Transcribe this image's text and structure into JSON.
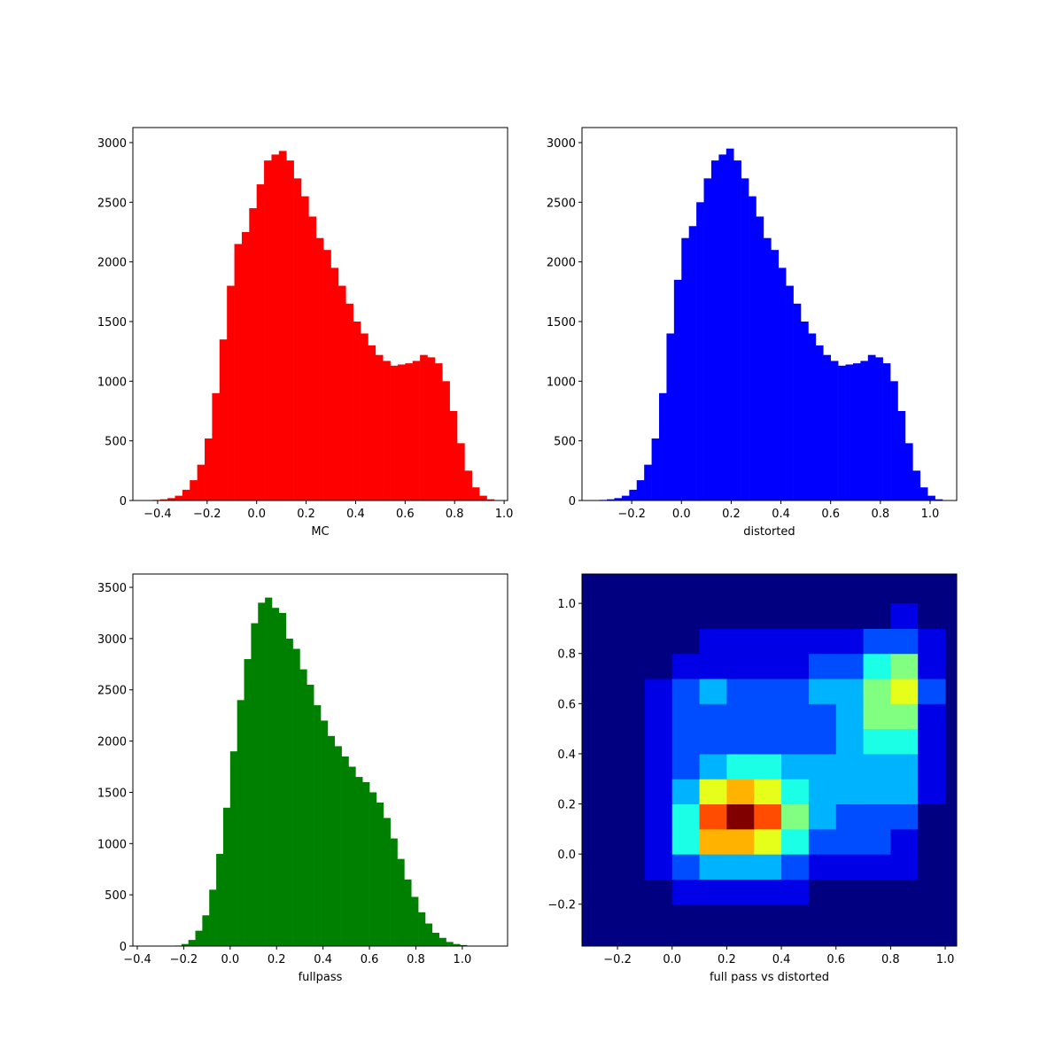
{
  "chart_data": [
    {
      "type": "histogram",
      "xlabel": "MC",
      "color": "#ff0000",
      "bins": [
        -0.42,
        -0.39,
        -0.36,
        -0.33,
        -0.3,
        -0.27,
        -0.24,
        -0.21,
        -0.18,
        -0.15,
        -0.12,
        -0.09,
        -0.06,
        -0.03,
        0.0,
        0.03,
        0.06,
        0.09,
        0.12,
        0.15,
        0.18,
        0.21,
        0.24,
        0.27,
        0.3,
        0.33,
        0.36,
        0.39,
        0.42,
        0.45,
        0.48,
        0.51,
        0.54,
        0.57,
        0.6,
        0.63,
        0.66,
        0.69,
        0.72,
        0.75,
        0.78,
        0.81,
        0.84,
        0.87,
        0.9,
        0.93,
        0.96
      ],
      "counts": [
        5,
        10,
        20,
        40,
        90,
        170,
        300,
        520,
        900,
        1350,
        1800,
        2150,
        2250,
        2450,
        2650,
        2850,
        2900,
        2930,
        2850,
        2700,
        2550,
        2380,
        2200,
        2100,
        1950,
        1800,
        1650,
        1500,
        1400,
        1300,
        1220,
        1170,
        1130,
        1140,
        1150,
        1170,
        1220,
        1200,
        1150,
        1000,
        750,
        480,
        250,
        110,
        40,
        10
      ],
      "xlim": [
        -0.5,
        1.014
      ],
      "xticks": [
        {
          "value": -0.4,
          "label": "−0.4"
        },
        {
          "value": -0.2,
          "label": "−0.2"
        },
        {
          "value": 0,
          "label": "0.0"
        },
        0.2,
        0.4,
        0.6,
        0.8,
        {
          "value": 1,
          "label": "1.0"
        }
      ],
      "ylim": [
        0,
        3126
      ],
      "yticks": [
        0,
        500,
        1000,
        1500,
        2000,
        2500,
        3000
      ]
    },
    {
      "type": "histogram",
      "xlabel": "distorted",
      "color": "#0000ff",
      "bins": [
        -0.33,
        -0.3,
        -0.27,
        -0.24,
        -0.21,
        -0.18,
        -0.15,
        -0.12,
        -0.09,
        -0.06,
        -0.03,
        0.0,
        0.03,
        0.06,
        0.09,
        0.12,
        0.15,
        0.18,
        0.21,
        0.24,
        0.27,
        0.3,
        0.33,
        0.36,
        0.39,
        0.42,
        0.45,
        0.48,
        0.51,
        0.54,
        0.57,
        0.6,
        0.63,
        0.66,
        0.69,
        0.72,
        0.75,
        0.78,
        0.81,
        0.84,
        0.87,
        0.9,
        0.93,
        0.96,
        0.99,
        1.02,
        1.05
      ],
      "counts": [
        5,
        10,
        20,
        40,
        90,
        170,
        300,
        520,
        900,
        1400,
        1850,
        2200,
        2300,
        2500,
        2700,
        2850,
        2900,
        2950,
        2850,
        2700,
        2550,
        2380,
        2200,
        2100,
        1950,
        1800,
        1650,
        1500,
        1400,
        1300,
        1220,
        1170,
        1130,
        1140,
        1150,
        1170,
        1220,
        1200,
        1150,
        1000,
        750,
        480,
        250,
        110,
        40,
        10
      ],
      "xlim": [
        -0.4,
        1.107
      ],
      "xticks": [
        {
          "value": -0.2,
          "label": "−0.2"
        },
        {
          "value": 0,
          "label": "0.0"
        },
        0.2,
        0.4,
        0.6,
        0.8,
        {
          "value": 1,
          "label": "1.0"
        }
      ],
      "ylim": [
        0,
        3126
      ],
      "yticks": [
        0,
        500,
        1000,
        1500,
        2000,
        2500,
        3000
      ]
    },
    {
      "type": "histogram",
      "xlabel": "fullpass",
      "color": "#008000",
      "bins": [
        -0.24,
        -0.21,
        -0.18,
        -0.15,
        -0.12,
        -0.09,
        -0.06,
        -0.03,
        0.0,
        0.03,
        0.06,
        0.09,
        0.12,
        0.15,
        0.18,
        0.21,
        0.24,
        0.27,
        0.3,
        0.33,
        0.36,
        0.39,
        0.42,
        0.45,
        0.48,
        0.51,
        0.54,
        0.57,
        0.6,
        0.63,
        0.66,
        0.69,
        0.72,
        0.75,
        0.78,
        0.81,
        0.84,
        0.87,
        0.9,
        0.93,
        0.96,
        0.99,
        1.02,
        1.05,
        1.08,
        1.11,
        1.14
      ],
      "counts": [
        5,
        20,
        60,
        150,
        300,
        550,
        900,
        1350,
        1900,
        2400,
        2800,
        3150,
        3350,
        3400,
        3300,
        3250,
        3000,
        2900,
        2700,
        2550,
        2350,
        2200,
        2050,
        1950,
        1850,
        1750,
        1650,
        1600,
        1500,
        1400,
        1250,
        1050,
        850,
        650,
        480,
        330,
        220,
        130,
        80,
        40,
        20,
        10,
        3,
        1,
        0,
        0
      ],
      "xlim": [
        -0.419,
        1.195
      ],
      "xticks": [
        {
          "value": -0.4,
          "label": "−0.4"
        },
        {
          "value": -0.2,
          "label": "−0.2"
        },
        {
          "value": 0,
          "label": "0.0"
        },
        0.2,
        0.4,
        0.6,
        0.8,
        {
          "value": 1,
          "label": "1.0"
        }
      ],
      "ylim": [
        0,
        3630
      ],
      "yticks": [
        0,
        500,
        1000,
        1500,
        2000,
        2500,
        3000,
        3500
      ]
    },
    {
      "type": "hist2d",
      "xlabel": "full pass vs distorted",
      "colormap": "jet",
      "xbins": [
        -0.3,
        -0.2,
        -0.1,
        0.0,
        0.1,
        0.2,
        0.3,
        0.4,
        0.5,
        0.6,
        0.7,
        0.8,
        0.9,
        1.0
      ],
      "ybins": [
        -0.3,
        -0.2,
        -0.1,
        0.0,
        0.1,
        0.2,
        0.3,
        0.4,
        0.5,
        0.6,
        0.7,
        0.8,
        0.9,
        1.0
      ],
      "counts": [
        [
          0,
          0,
          0,
          0,
          0,
          0,
          0,
          0,
          0,
          0,
          0,
          0,
          0
        ],
        [
          0,
          0,
          0,
          1,
          1,
          1,
          1,
          1,
          0,
          0,
          0,
          0,
          0
        ],
        [
          0,
          0,
          1,
          2,
          3,
          3,
          3,
          2,
          1,
          1,
          1,
          1,
          0
        ],
        [
          0,
          0,
          1,
          4,
          7,
          7,
          6,
          4,
          2,
          2,
          2,
          1,
          0
        ],
        [
          0,
          0,
          1,
          4,
          8,
          10,
          8,
          5,
          3,
          2,
          2,
          2,
          0
        ],
        [
          0,
          0,
          1,
          3,
          6,
          7,
          6,
          4,
          3,
          3,
          3,
          3,
          1
        ],
        [
          0,
          0,
          1,
          2,
          3,
          4,
          4,
          3,
          3,
          3,
          3,
          3,
          1
        ],
        [
          0,
          0,
          1,
          2,
          2,
          2,
          2,
          2,
          2,
          3,
          4,
          4,
          1
        ],
        [
          0,
          0,
          1,
          2,
          2,
          2,
          2,
          2,
          2,
          3,
          5,
          5,
          1
        ],
        [
          0,
          0,
          1,
          2,
          3,
          2,
          2,
          2,
          3,
          3,
          5,
          6,
          2
        ],
        [
          0,
          0,
          0,
          1,
          1,
          1,
          1,
          1,
          2,
          2,
          4,
          5,
          1
        ],
        [
          0,
          0,
          0,
          0,
          1,
          1,
          1,
          1,
          1,
          1,
          2,
          2,
          1
        ],
        [
          0,
          0,
          0,
          0,
          0,
          0,
          0,
          0,
          0,
          0,
          0,
          1,
          0
        ]
      ],
      "xlim": [
        -0.33,
        1.042
      ],
      "xticks": [
        {
          "value": -0.2,
          "label": "−0.2"
        },
        {
          "value": 0,
          "label": "0.0"
        },
        0.2,
        0.4,
        0.6,
        0.8,
        {
          "value": 1,
          "label": "1.0"
        }
      ],
      "ylim": [
        -0.367,
        1.117
      ],
      "yticks": [
        {
          "value": -0.2,
          "label": "−0.2"
        },
        {
          "value": 0,
          "label": "0.0"
        },
        0.2,
        0.4,
        0.6,
        0.8,
        {
          "value": 1,
          "label": "1.0"
        }
      ]
    }
  ]
}
